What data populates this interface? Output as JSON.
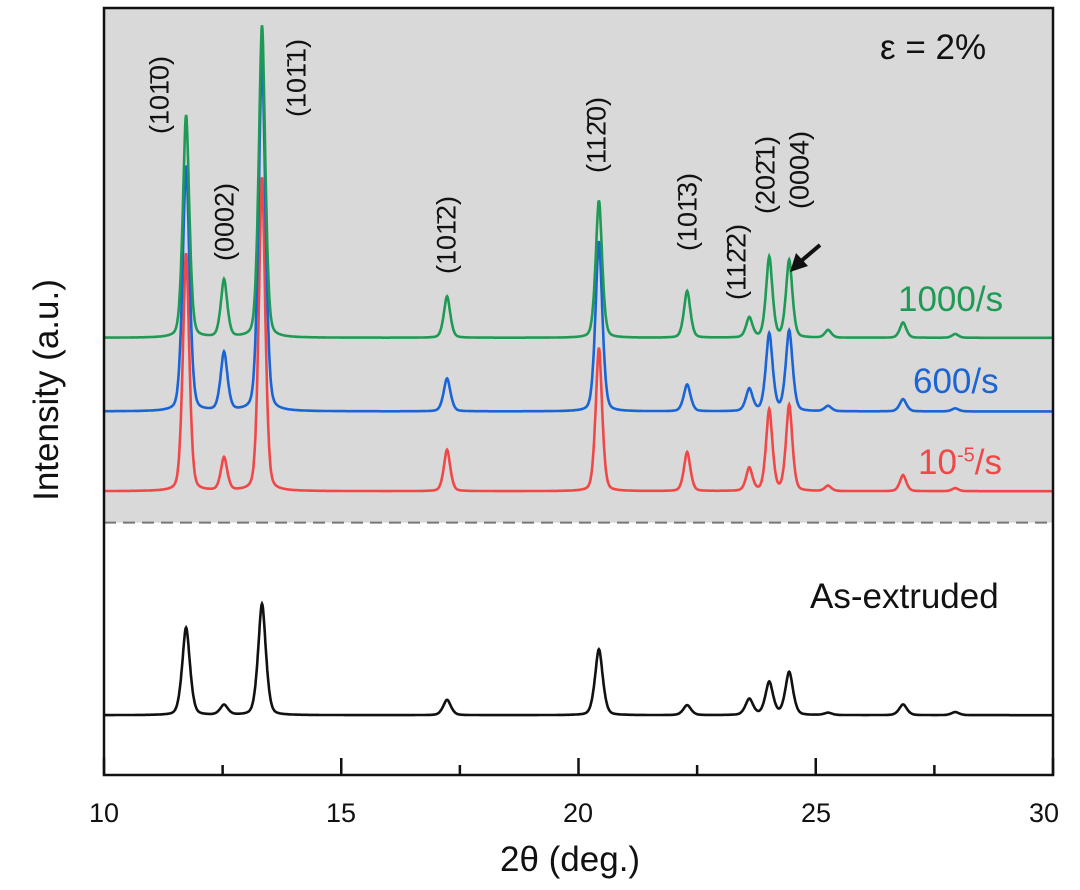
{
  "chart_data": {
    "type": "line",
    "title": "",
    "xlabel": "2θ (deg.)",
    "ylabel": "Intensity (a.u.)",
    "xlim": [
      10,
      30
    ],
    "ylim": [
      0,
      100
    ],
    "xticks": [
      10,
      15,
      20,
      25,
      30
    ],
    "xtick_labels": [
      "10",
      "15",
      "20",
      "25",
      "30"
    ],
    "minor_xticks": [
      12.5,
      17.5,
      22.5,
      27.5
    ],
    "annotation_strain": "ε = 2%",
    "strained_region_divider": 32.9,
    "peak_positions": [
      11.73,
      12.53,
      13.33,
      17.23,
      20.43,
      22.29,
      23.6,
      24.02,
      24.44,
      25.26,
      26.84,
      27.94
    ],
    "peak_labels": [
      "(101̄0)",
      "(0002)",
      "(101̄1)",
      "(101̄2)",
      "(112̄0)",
      "(101̄3)",
      "(112̄2)",
      "(202̄1)",
      "(0004)"
    ],
    "series": [
      {
        "name": "1000/s",
        "color": "#1e9a55",
        "offset": 57.0,
        "width": 0.075,
        "heights": [
          29.0,
          7.5,
          40.7,
          5.4,
          17.9,
          6.1,
          2.6,
          10.5,
          10.1,
          1.0,
          2.0,
          0.5
        ]
      },
      {
        "name": "600/s",
        "color": "#1a64d6",
        "offset": 47.4,
        "width": 0.08,
        "heights": [
          32.0,
          7.6,
          45.8,
          4.3,
          22.2,
          3.5,
          2.9,
          10.1,
          10.5,
          0.7,
          1.6,
          0.4
        ]
      },
      {
        "name_base": "10",
        "name_exp": "-5",
        "name_suffix": "/s",
        "color": "#f04848",
        "offset": 37.0,
        "width": 0.075,
        "heights": [
          31.0,
          4.3,
          40.9,
          5.4,
          18.7,
          5.1,
          3.0,
          10.6,
          11.2,
          0.7,
          2.1,
          0.4
        ]
      },
      {
        "name": "As-extruded",
        "color": "#111111",
        "offset": 7.8,
        "width": 0.09,
        "heights": [
          11.4,
          1.3,
          14.5,
          2.0,
          8.6,
          1.3,
          2.1,
          4.3,
          5.6,
          0.3,
          1.4,
          0.4
        ]
      }
    ]
  }
}
